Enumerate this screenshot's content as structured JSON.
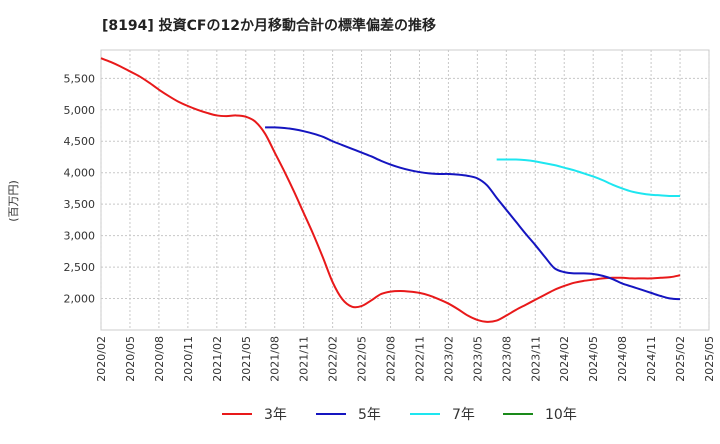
{
  "chart_data": {
    "type": "line",
    "title": "[8194]  投資CFの12か月移動合計の標準偏差の推移",
    "ylabel": "(百万円)",
    "xlabel": "",
    "ylim": [
      1500,
      5950
    ],
    "yticks": [
      2000,
      2500,
      3000,
      3500,
      4000,
      4500,
      5000,
      5500
    ],
    "ytick_labels": [
      "2,000",
      "2,500",
      "3,000",
      "3,500",
      "4,000",
      "4,500",
      "5,000",
      "5,500"
    ],
    "xticks": [
      "2020/02",
      "2020/05",
      "2020/08",
      "2020/11",
      "2021/02",
      "2021/05",
      "2021/08",
      "2021/11",
      "2022/02",
      "2022/05",
      "2022/08",
      "2022/11",
      "2023/02",
      "2023/05",
      "2023/08",
      "2023/11",
      "2024/02",
      "2024/05",
      "2024/08",
      "2024/11",
      "2025/02",
      "2025/05"
    ],
    "grid": true,
    "legend_position": "bottom",
    "series": [
      {
        "name": "3年",
        "color": "#e8191a",
        "x": [
          "2020/02",
          "2020/03",
          "2020/04",
          "2020/05",
          "2020/06",
          "2020/07",
          "2020/08",
          "2020/09",
          "2020/10",
          "2020/11",
          "2020/12",
          "2021/01",
          "2021/02",
          "2021/03",
          "2021/04",
          "2021/05",
          "2021/06",
          "2021/07",
          "2021/08",
          "2021/09",
          "2021/10",
          "2021/11",
          "2021/12",
          "2022/01",
          "2022/02",
          "2022/03",
          "2022/04",
          "2022/05",
          "2022/06",
          "2022/07",
          "2022/08",
          "2022/09",
          "2022/10",
          "2022/11",
          "2022/12",
          "2023/01",
          "2023/02",
          "2023/03",
          "2023/04",
          "2023/05",
          "2023/06",
          "2023/07",
          "2023/08",
          "2023/09",
          "2023/10",
          "2023/11",
          "2023/12",
          "2024/01",
          "2024/02",
          "2024/03",
          "2024/04",
          "2024/05",
          "2024/06",
          "2024/07",
          "2024/08",
          "2024/09",
          "2024/10",
          "2024/11",
          "2024/12",
          "2025/01",
          "2025/02"
        ],
        "values": [
          5820,
          5760,
          5690,
          5610,
          5530,
          5430,
          5320,
          5220,
          5130,
          5060,
          5000,
          4950,
          4910,
          4900,
          4910,
          4890,
          4810,
          4620,
          4320,
          4020,
          3700,
          3360,
          3020,
          2650,
          2260,
          1990,
          1870,
          1880,
          1970,
          2070,
          2110,
          2120,
          2110,
          2090,
          2050,
          1990,
          1920,
          1830,
          1730,
          1660,
          1630,
          1650,
          1730,
          1820,
          1900,
          1980,
          2060,
          2140,
          2200,
          2250,
          2280,
          2300,
          2320,
          2330,
          2330,
          2320,
          2320,
          2320,
          2330,
          2340,
          2370
        ]
      },
      {
        "name": "5年",
        "color": "#1515c0",
        "x": [
          "2021/07",
          "2021/08",
          "2021/09",
          "2021/10",
          "2021/11",
          "2021/12",
          "2022/01",
          "2022/02",
          "2022/03",
          "2022/04",
          "2022/05",
          "2022/06",
          "2022/07",
          "2022/08",
          "2022/09",
          "2022/10",
          "2022/11",
          "2022/12",
          "2023/01",
          "2023/02",
          "2023/03",
          "2023/04",
          "2023/05",
          "2023/06",
          "2023/07",
          "2023/08",
          "2023/09",
          "2023/10",
          "2023/11",
          "2023/12",
          "2024/01",
          "2024/02",
          "2024/03",
          "2024/04",
          "2024/05",
          "2024/06",
          "2024/07",
          "2024/08",
          "2024/09",
          "2024/10",
          "2024/11",
          "2024/12",
          "2025/01",
          "2025/02"
        ],
        "values": [
          4720,
          4720,
          4710,
          4690,
          4660,
          4620,
          4570,
          4500,
          4440,
          4380,
          4320,
          4260,
          4190,
          4130,
          4080,
          4040,
          4010,
          3990,
          3980,
          3980,
          3970,
          3950,
          3910,
          3800,
          3600,
          3410,
          3220,
          3030,
          2850,
          2660,
          2480,
          2420,
          2400,
          2400,
          2390,
          2360,
          2310,
          2240,
          2190,
          2140,
          2090,
          2040,
          2000,
          1990
        ]
      },
      {
        "name": "7年",
        "color": "#1ee6f0",
        "x": [
          "2023/07",
          "2023/08",
          "2023/09",
          "2023/10",
          "2023/11",
          "2023/12",
          "2024/01",
          "2024/02",
          "2024/03",
          "2024/04",
          "2024/05",
          "2024/06",
          "2024/07",
          "2024/08",
          "2024/09",
          "2024/10",
          "2024/11",
          "2024/12",
          "2025/01",
          "2025/02"
        ],
        "values": [
          4210,
          4210,
          4210,
          4200,
          4180,
          4150,
          4120,
          4080,
          4040,
          3990,
          3940,
          3880,
          3810,
          3750,
          3700,
          3670,
          3650,
          3640,
          3630,
          3630
        ]
      },
      {
        "name": "10年",
        "color": "#1a8a1a",
        "x": [],
        "values": []
      }
    ]
  }
}
